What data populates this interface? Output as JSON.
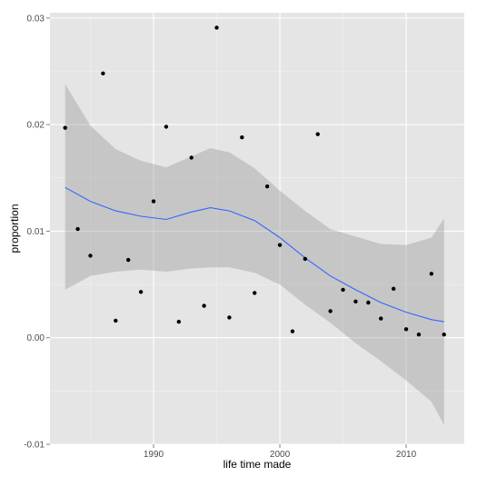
{
  "chart_data": {
    "type": "scatter",
    "title": "",
    "xlabel": "life time made",
    "ylabel": "proportion",
    "xlim": [
      1981.8,
      2014.6
    ],
    "ylim": [
      -0.01,
      0.0305
    ],
    "x_ticks": [
      1990,
      2000,
      2010
    ],
    "x_tick_labels": [
      "1990",
      "2000",
      "2010"
    ],
    "y_ticks": [
      -0.01,
      0.0,
      0.01,
      0.02,
      0.03
    ],
    "y_tick_labels": [
      "-0.01",
      "0.00",
      "0.01",
      "0.02",
      "0.03"
    ],
    "grid": true,
    "legend": "none",
    "colors": {
      "panel_background": "#e5e5e5",
      "grid_major": "#ffffff",
      "grid_minor": "#f2f2f2",
      "points": "#000000",
      "smooth_line": "#3366ff",
      "confidence_band": "#999999"
    },
    "points": [
      {
        "x": 1983,
        "y": 0.0197
      },
      {
        "x": 1984,
        "y": 0.0102
      },
      {
        "x": 1985,
        "y": 0.0077
      },
      {
        "x": 1986,
        "y": 0.0248
      },
      {
        "x": 1987,
        "y": 0.0016
      },
      {
        "x": 1988,
        "y": 0.0073
      },
      {
        "x": 1989,
        "y": 0.0043
      },
      {
        "x": 1990,
        "y": 0.0128
      },
      {
        "x": 1991,
        "y": 0.0198
      },
      {
        "x": 1992,
        "y": 0.0015
      },
      {
        "x": 1993,
        "y": 0.0169
      },
      {
        "x": 1994,
        "y": 0.003
      },
      {
        "x": 1995,
        "y": 0.0291
      },
      {
        "x": 1996,
        "y": 0.0019
      },
      {
        "x": 1997,
        "y": 0.0188
      },
      {
        "x": 1998,
        "y": 0.0042
      },
      {
        "x": 1999,
        "y": 0.0142
      },
      {
        "x": 2000,
        "y": 0.0087
      },
      {
        "x": 2001,
        "y": 0.0006
      },
      {
        "x": 2002,
        "y": 0.0074
      },
      {
        "x": 2003,
        "y": 0.0191
      },
      {
        "x": 2004,
        "y": 0.0025
      },
      {
        "x": 2005,
        "y": 0.0045
      },
      {
        "x": 2006,
        "y": 0.0034
      },
      {
        "x": 2007,
        "y": 0.0033
      },
      {
        "x": 2008,
        "y": 0.0018
      },
      {
        "x": 2009,
        "y": 0.0046
      },
      {
        "x": 2010,
        "y": 0.0008
      },
      {
        "x": 2011,
        "y": 0.0003
      },
      {
        "x": 2012,
        "y": 0.006
      },
      {
        "x": 2013,
        "y": 0.0003
      }
    ],
    "smooth": {
      "x": [
        1983,
        1985,
        1987,
        1989,
        1991,
        1993,
        1994.5,
        1996,
        1998,
        2000,
        2002,
        2004,
        2006,
        2008,
        2010,
        2012,
        2013
      ],
      "y": [
        0.0141,
        0.0128,
        0.0119,
        0.0114,
        0.0111,
        0.0118,
        0.0122,
        0.0119,
        0.011,
        0.0094,
        0.0075,
        0.0058,
        0.0045,
        0.0033,
        0.0024,
        0.0017,
        0.0015
      ],
      "lower": [
        0.0045,
        0.0058,
        0.0062,
        0.0064,
        0.0062,
        0.0065,
        0.0066,
        0.0066,
        0.0061,
        0.005,
        0.0031,
        0.0014,
        -0.0005,
        -0.0022,
        -0.004,
        -0.006,
        -0.0082
      ],
      "upper": [
        0.0238,
        0.0199,
        0.0177,
        0.0166,
        0.016,
        0.017,
        0.0178,
        0.0174,
        0.0159,
        0.0138,
        0.0119,
        0.0102,
        0.0095,
        0.0088,
        0.0087,
        0.0094,
        0.0112
      ]
    }
  }
}
